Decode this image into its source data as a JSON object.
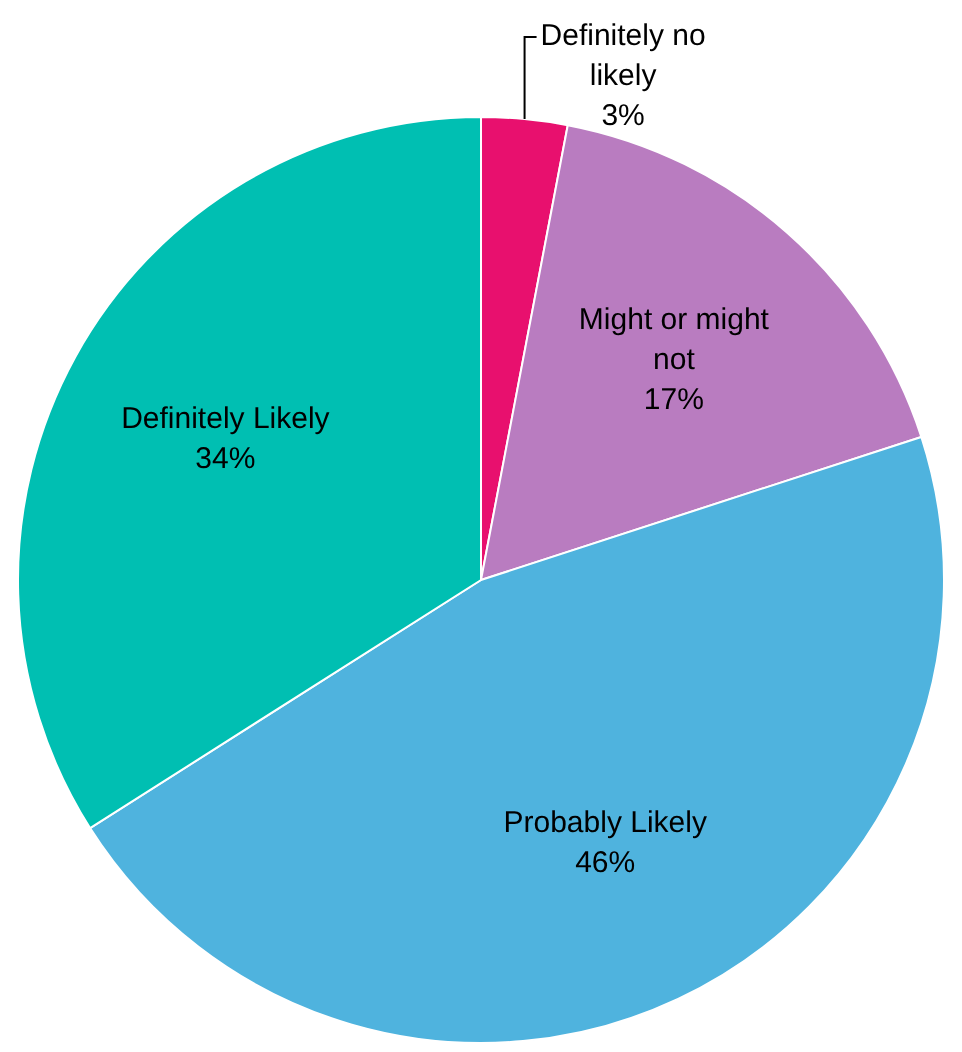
{
  "chart_data": {
    "type": "pie",
    "categories": [
      "Definitely no likely",
      "Might or might not",
      "Probably Likely",
      "Definitely Likely"
    ],
    "values": [
      3,
      17,
      46,
      34
    ],
    "colors": [
      "#e8106e",
      "#b97cc0",
      "#4fb3de",
      "#00bfb2"
    ],
    "value_labels": [
      "3%",
      "17%",
      "46%",
      "34%"
    ],
    "legend": false
  }
}
